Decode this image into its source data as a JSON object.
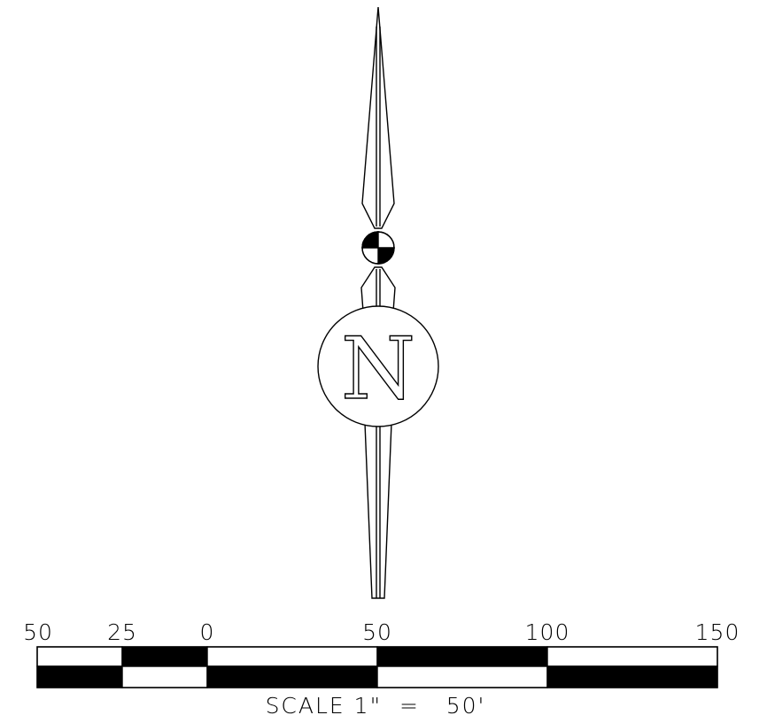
{
  "north_arrow": {
    "label": "N"
  },
  "scale_bar": {
    "tick_labels": [
      "50",
      "25",
      "0",
      "50",
      "100",
      "150"
    ],
    "caption": "SCALE 1\"  =   50'"
  }
}
